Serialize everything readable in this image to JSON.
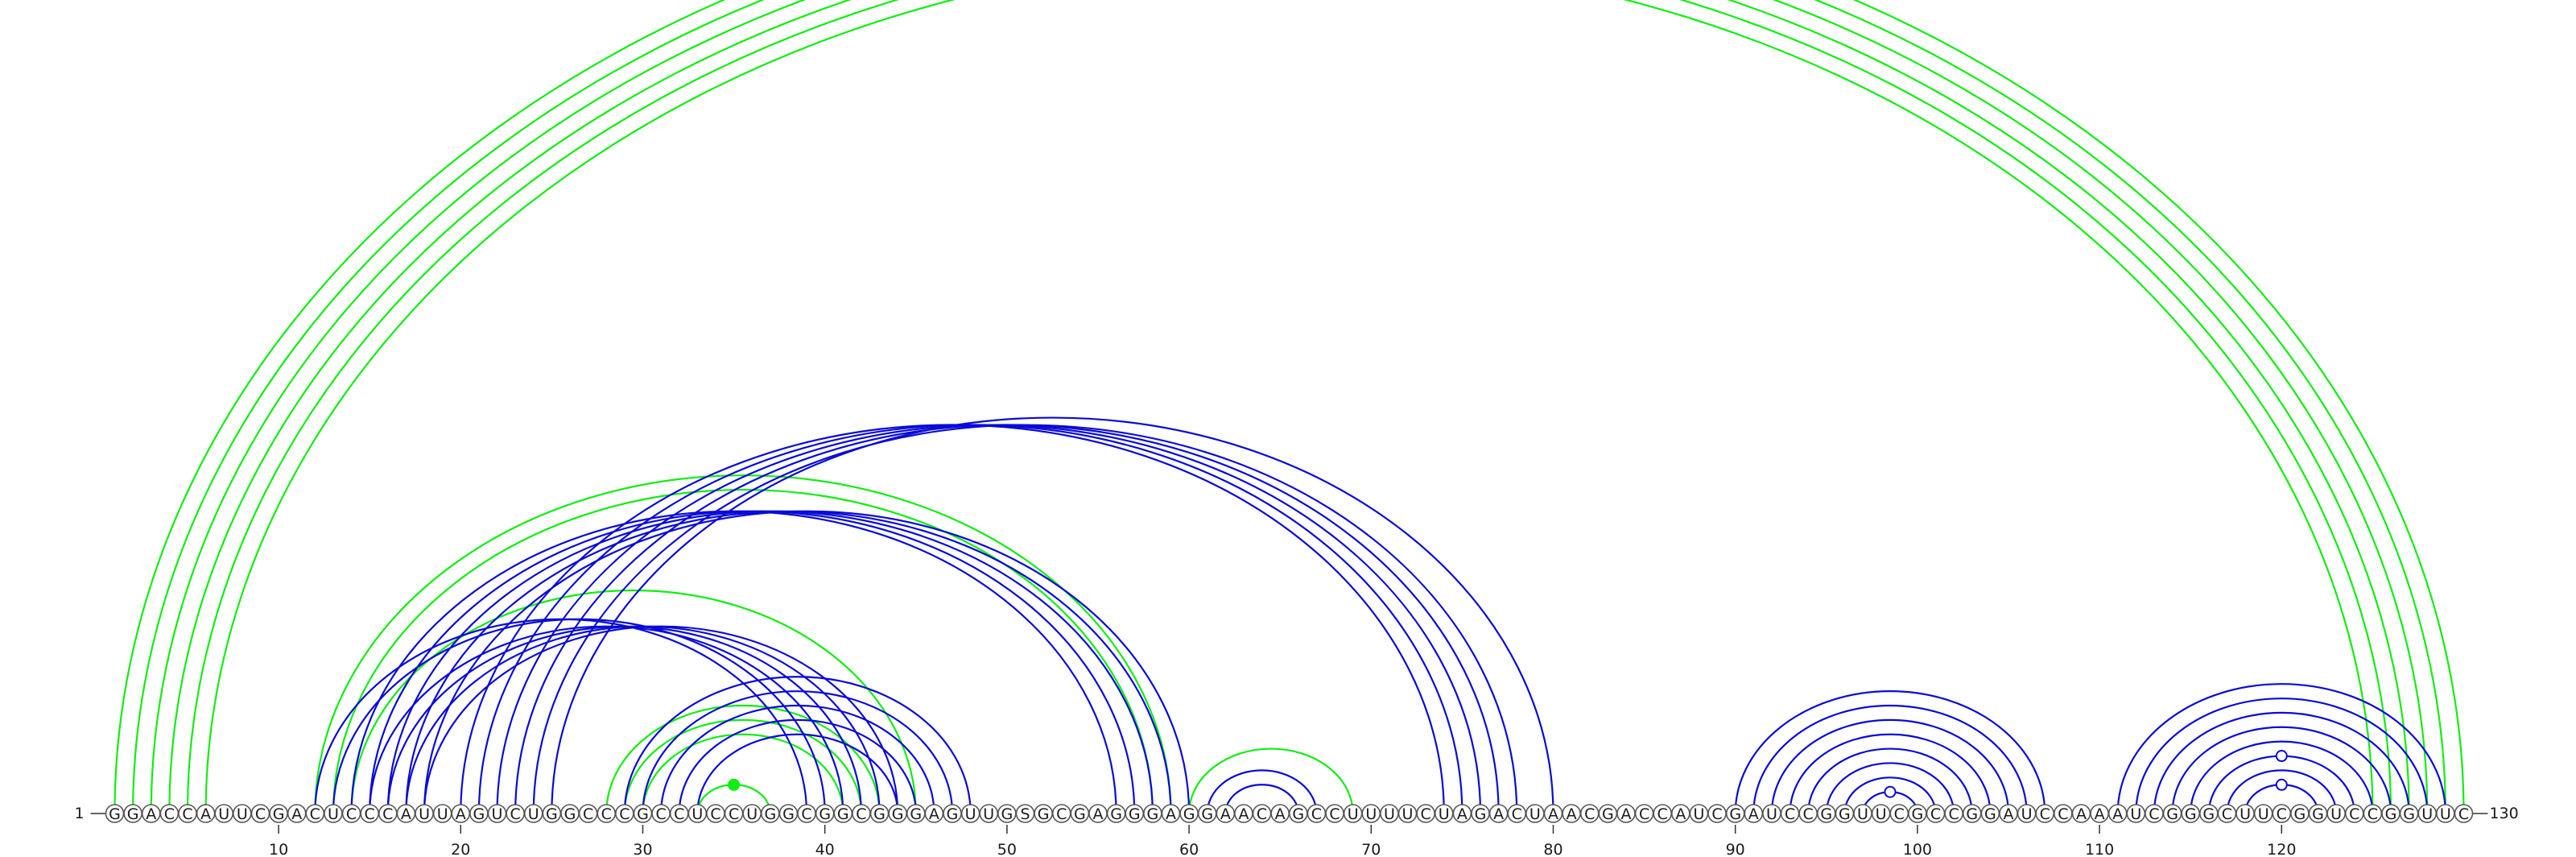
{
  "sequence": "GGACCAUUCGACUCCCAUUAGUCUGGCCCGCCUCCUGGCGGCGGGAGUUGSGCGAGGGAGGAACAGCCUUUUCUAGACUAACGACCAUCGAUCCGGUUCGCCGGAUCCAAAUCGGGCUUCGGUCCGGUUC",
  "start_label": "1",
  "end_label": "130",
  "ticks": [
    10,
    20,
    30,
    40,
    50,
    60,
    70,
    80,
    90,
    100,
    110,
    120
  ],
  "colors": {
    "green": "#11ee11",
    "blue": "#0a0ad8"
  },
  "green_arcs": [
    [
      1,
      130
    ],
    [
      2,
      129
    ],
    [
      3,
      128
    ],
    [
      4,
      127
    ],
    [
      5,
      126
    ],
    [
      6,
      125
    ],
    [
      12,
      59
    ],
    [
      13,
      58
    ],
    [
      14,
      45
    ],
    [
      28,
      43
    ],
    [
      29,
      42
    ],
    [
      30,
      41
    ],
    [
      60,
      69
    ]
  ],
  "blue_arcs": [
    [
      12,
      39
    ],
    [
      13,
      40
    ],
    [
      15,
      41
    ],
    [
      16,
      42
    ],
    [
      17,
      43
    ],
    [
      18,
      44
    ],
    [
      14,
      56
    ],
    [
      15,
      57
    ],
    [
      16,
      58
    ],
    [
      17,
      59
    ],
    [
      18,
      60
    ],
    [
      20,
      74
    ],
    [
      21,
      75
    ],
    [
      22,
      76
    ],
    [
      23,
      77
    ],
    [
      24,
      78
    ],
    [
      25,
      80
    ],
    [
      29,
      48
    ],
    [
      30,
      47
    ],
    [
      31,
      46
    ],
    [
      32,
      45
    ],
    [
      33,
      44
    ],
    [
      61,
      67
    ],
    [
      62,
      66
    ],
    [
      90,
      107
    ],
    [
      91,
      106
    ],
    [
      92,
      105
    ],
    [
      93,
      104
    ],
    [
      94,
      103
    ],
    [
      95,
      102
    ],
    [
      96,
      101
    ],
    [
      97,
      100
    ],
    [
      111,
      129
    ],
    [
      112,
      128
    ],
    [
      113,
      127
    ],
    [
      114,
      126
    ],
    [
      115,
      125
    ],
    [
      116,
      124
    ],
    [
      117,
      123
    ],
    [
      118,
      122
    ]
  ],
  "markers": [
    {
      "arc": [
        6,
        125
      ],
      "color": "green",
      "filled": false
    },
    {
      "arc": [
        33,
        37
      ],
      "color": "green",
      "filled": true
    },
    {
      "arc": [
        97,
        100
      ],
      "color": "blue",
      "filled": false
    },
    {
      "arc": [
        116,
        124
      ],
      "color": "blue",
      "filled": false
    },
    {
      "arc": [
        118,
        122
      ],
      "color": "blue",
      "filled": false
    }
  ],
  "green_small": [
    [
      33,
      37
    ]
  ]
}
